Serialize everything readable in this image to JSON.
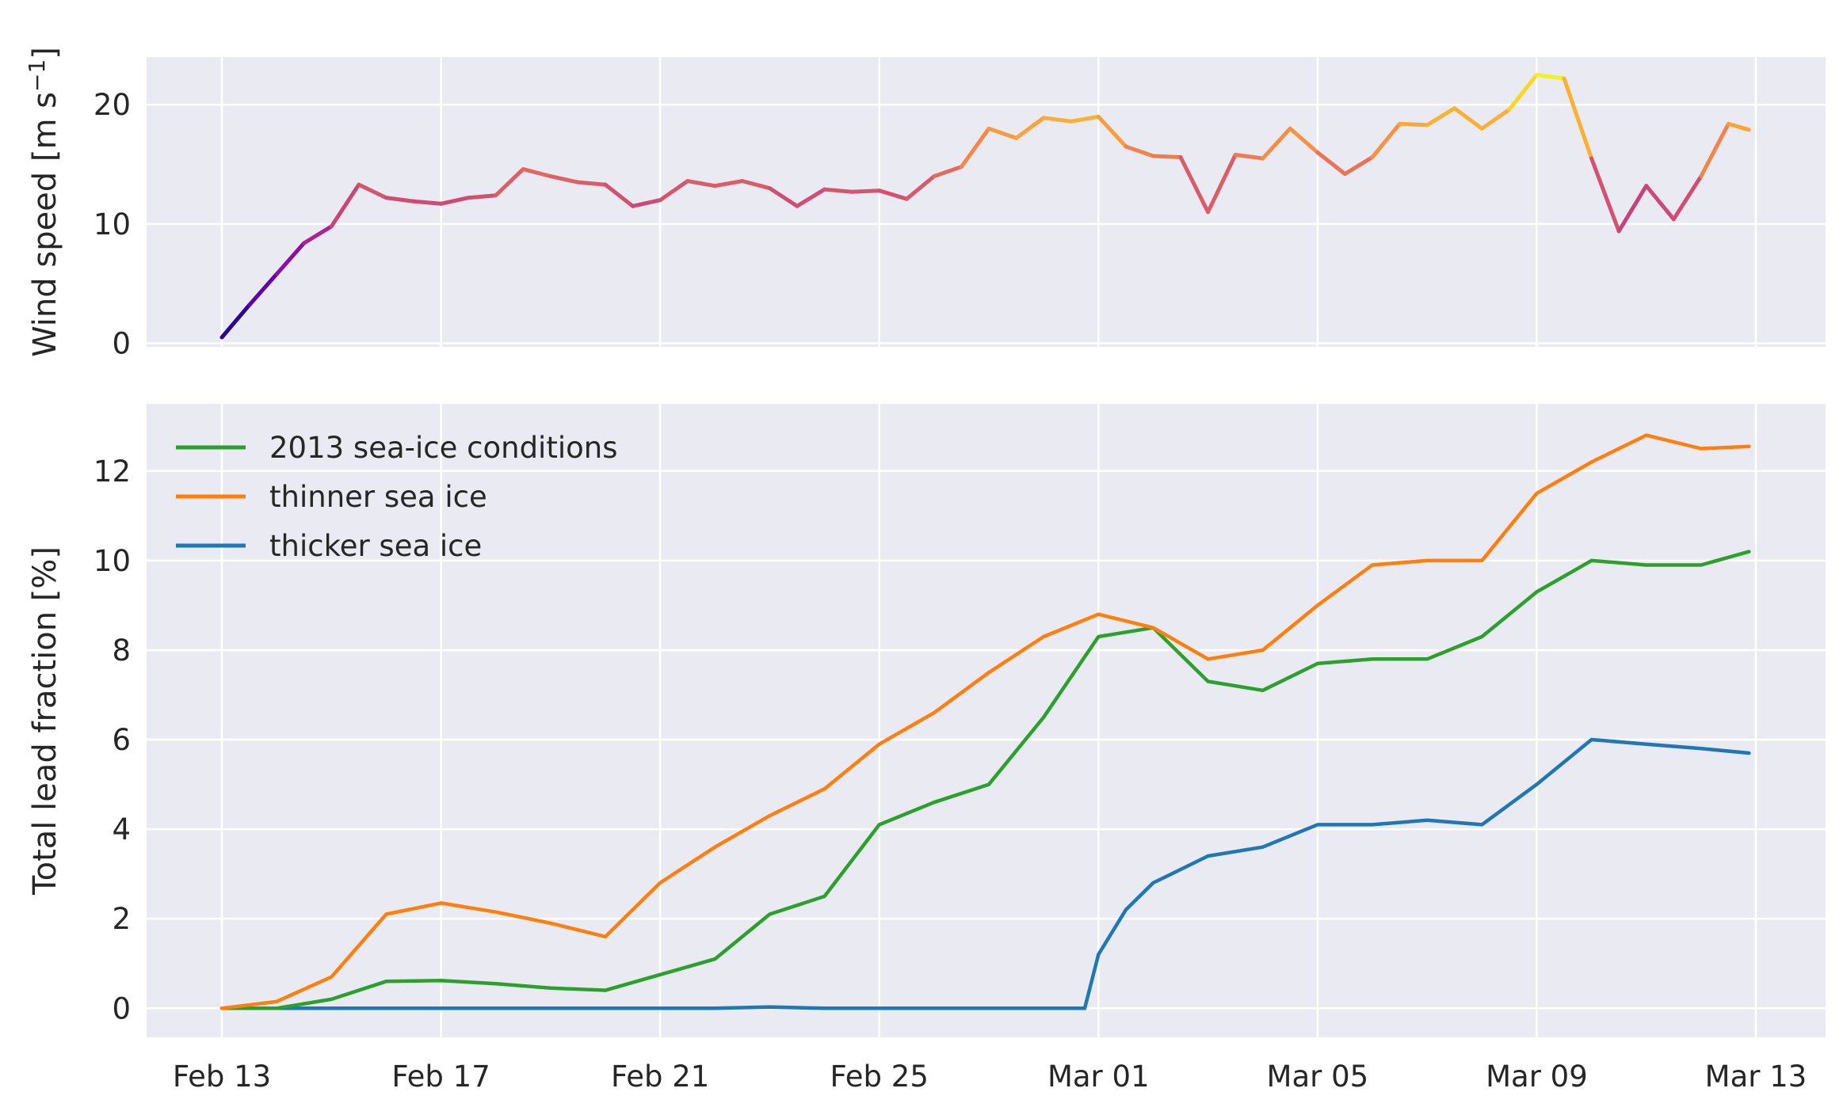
{
  "chart_data": [
    {
      "type": "line",
      "panel": "top",
      "ylabel_main": "Wind speed [m s",
      "ylabel_sup": "−1",
      "ylabel_close": "]",
      "xlabel": "",
      "title": "",
      "grid": true,
      "ylim": [
        -0.3,
        24
      ],
      "yticks": [
        0,
        10,
        20
      ],
      "x_days": [
        "2013-02-13",
        "2013-03-13"
      ],
      "colormap": "plasma",
      "colorscale": {
        "min": 0.5,
        "max": 22.7
      },
      "series": [
        {
          "x": [
            "2013-02-13",
            "2013-02-13 12:00",
            "2013-02-14",
            "2013-02-14 12:00",
            "2013-02-15",
            "2013-02-15 12:00",
            "2013-02-16",
            "2013-02-16 12:00",
            "2013-02-17",
            "2013-02-17 12:00",
            "2013-02-18",
            "2013-02-18 12:00",
            "2013-02-19",
            "2013-02-19 12:00",
            "2013-02-20",
            "2013-02-20 12:00",
            "2013-02-21",
            "2013-02-21 12:00",
            "2013-02-22",
            "2013-02-22 12:00",
            "2013-02-23",
            "2013-02-23 12:00",
            "2013-02-24",
            "2013-02-24 12:00",
            "2013-02-25",
            "2013-02-25 12:00",
            "2013-02-26",
            "2013-02-26 12:00",
            "2013-02-27",
            "2013-02-27 12:00",
            "2013-02-28",
            "2013-02-28 12:00",
            "2013-03-01",
            "2013-03-01 12:00",
            "2013-03-02",
            "2013-03-02 12:00",
            "2013-03-03",
            "2013-03-03 12:00",
            "2013-03-04",
            "2013-03-04 12:00",
            "2013-03-05",
            "2013-03-05 12:00",
            "2013-03-06",
            "2013-03-06 12:00",
            "2013-03-07",
            "2013-03-07 12:00",
            "2013-03-08",
            "2013-03-08 12:00",
            "2013-03-09",
            "2013-03-09 12:00",
            "2013-03-10",
            "2013-03-10 12:00",
            "2013-03-11",
            "2013-03-11 12:00",
            "2013-03-12",
            "2013-03-12 12:00",
            "2013-03-12 21:00"
          ],
          "values": [
            0.5,
            3.2,
            5.8,
            8.4,
            9.8,
            13.3,
            12.2,
            11.9,
            11.7,
            12.2,
            12.4,
            14.6,
            14.0,
            13.5,
            13.3,
            11.5,
            12.0,
            13.6,
            13.2,
            13.6,
            13.0,
            11.5,
            12.9,
            12.7,
            12.8,
            12.1,
            14.0,
            14.8,
            18.0,
            17.2,
            18.9,
            18.6,
            19.0,
            16.5,
            15.7,
            15.6,
            11.0,
            15.8,
            15.5,
            18.0,
            16.0,
            14.2,
            15.6,
            18.4,
            18.3,
            19.7,
            18.0,
            19.6,
            22.5,
            22.2,
            15.5,
            9.4,
            13.2,
            10.4,
            14.0,
            18.4,
            17.9
          ]
        }
      ]
    },
    {
      "type": "line",
      "panel": "bottom",
      "ylabel": "Total lead fraction [%]",
      "xlabel": "",
      "title": "",
      "grid": true,
      "ylim": [
        -0.65,
        13.5
      ],
      "yticks": [
        0,
        2,
        4,
        6,
        8,
        10,
        12
      ],
      "x_days": [
        "2013-02-13",
        "2013-03-13"
      ],
      "xtick_labels": [
        "Feb 13",
        "Feb 17",
        "Feb 21",
        "Feb 25",
        "Mar 01",
        "Mar 05",
        "Mar 09",
        "Mar 13"
      ],
      "xtick_values": [
        "2013-02-13",
        "2013-02-17",
        "2013-02-21",
        "2013-02-25",
        "2013-03-01",
        "2013-03-05",
        "2013-03-09",
        "2013-03-13"
      ],
      "legend_position": "top-left",
      "series": [
        {
          "name": "2013 sea-ice conditions",
          "color": "#2ca02c",
          "x": [
            "2013-02-13",
            "2013-02-14",
            "2013-02-15",
            "2013-02-16",
            "2013-02-17",
            "2013-02-18",
            "2013-02-19",
            "2013-02-20",
            "2013-02-21",
            "2013-02-22",
            "2013-02-23",
            "2013-02-24",
            "2013-02-25",
            "2013-02-26",
            "2013-02-27",
            "2013-02-28",
            "2013-03-01",
            "2013-03-02",
            "2013-03-03",
            "2013-03-04",
            "2013-03-05",
            "2013-03-06",
            "2013-03-07",
            "2013-03-08",
            "2013-03-09",
            "2013-03-10",
            "2013-03-11",
            "2013-03-12",
            "2013-03-12 21:00"
          ],
          "values": [
            0.0,
            0.0,
            0.2,
            0.6,
            0.62,
            0.55,
            0.45,
            0.4,
            0.75,
            1.1,
            2.1,
            2.5,
            4.1,
            4.6,
            5.0,
            6.5,
            8.3,
            8.5,
            7.3,
            7.1,
            7.7,
            7.8,
            7.8,
            8.3,
            9.3,
            10.0,
            9.9,
            9.9,
            10.2
          ]
        },
        {
          "name": "thinner sea ice",
          "color": "#ff7f0e",
          "x": [
            "2013-02-13",
            "2013-02-14",
            "2013-02-15",
            "2013-02-16",
            "2013-02-17",
            "2013-02-18",
            "2013-02-19",
            "2013-02-20",
            "2013-02-21",
            "2013-02-22",
            "2013-02-23",
            "2013-02-24",
            "2013-02-25",
            "2013-02-26",
            "2013-02-27",
            "2013-02-28",
            "2013-03-01",
            "2013-03-02",
            "2013-03-03",
            "2013-03-04",
            "2013-03-05",
            "2013-03-06",
            "2013-03-07",
            "2013-03-08",
            "2013-03-09",
            "2013-03-10",
            "2013-03-11",
            "2013-03-12",
            "2013-03-12 21:00"
          ],
          "values": [
            0.0,
            0.15,
            0.7,
            2.1,
            2.35,
            2.15,
            1.9,
            1.6,
            2.8,
            3.6,
            4.3,
            4.9,
            5.9,
            6.6,
            7.5,
            8.3,
            8.8,
            8.5,
            7.8,
            8.0,
            9.0,
            9.9,
            10.0,
            10.0,
            11.5,
            12.2,
            12.8,
            12.5,
            12.55
          ]
        },
        {
          "name": "thicker sea ice",
          "color": "#1f77b4",
          "x": [
            "2013-02-13",
            "2013-02-16",
            "2013-02-19",
            "2013-02-22",
            "2013-02-23",
            "2013-02-24",
            "2013-02-27",
            "2013-02-28 18:00",
            "2013-03-01",
            "2013-03-01 12:00",
            "2013-03-02",
            "2013-03-02 12:00",
            "2013-03-03",
            "2013-03-04",
            "2013-03-05",
            "2013-03-06",
            "2013-03-07",
            "2013-03-08",
            "2013-03-09",
            "2013-03-10",
            "2013-03-11",
            "2013-03-12",
            "2013-03-12 21:00"
          ],
          "values": [
            0.0,
            0.0,
            0.0,
            0.0,
            0.03,
            0.0,
            0.0,
            0.0,
            1.2,
            2.2,
            2.8,
            3.1,
            3.4,
            3.6,
            4.1,
            4.1,
            4.2,
            4.1,
            5.0,
            6.0,
            5.9,
            5.8,
            5.7
          ]
        }
      ]
    }
  ]
}
